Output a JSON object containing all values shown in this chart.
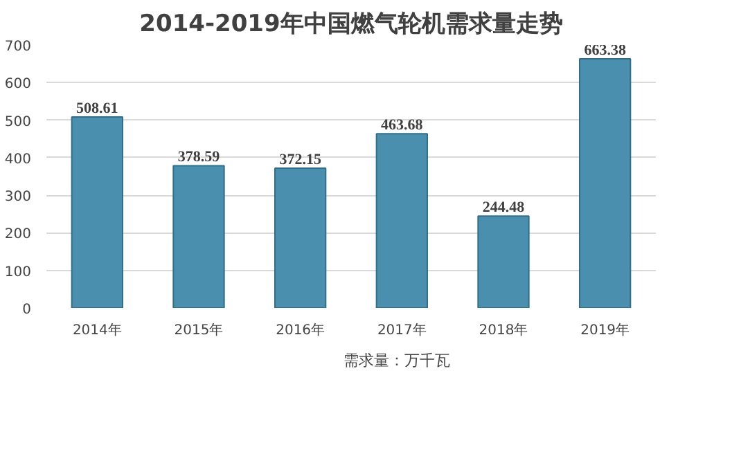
{
  "chart_data": {
    "type": "bar",
    "title": "2014-2019年中国燃气轮机需求量走势",
    "categories": [
      "2014年",
      "2015年",
      "2016年",
      "2017年",
      "2018年",
      "2019年"
    ],
    "series": [
      {
        "name": "需求量：万千瓦",
        "color": "#4a8fae",
        "values": [
          508.61,
          378.59,
          372.15,
          463.68,
          244.48,
          663.38
        ]
      }
    ],
    "ylim": [
      0,
      700
    ],
    "yticks": [
      0,
      100,
      200,
      300,
      400,
      500,
      600,
      700
    ],
    "grid": "y",
    "legend": "bottom",
    "data_labels": true
  }
}
